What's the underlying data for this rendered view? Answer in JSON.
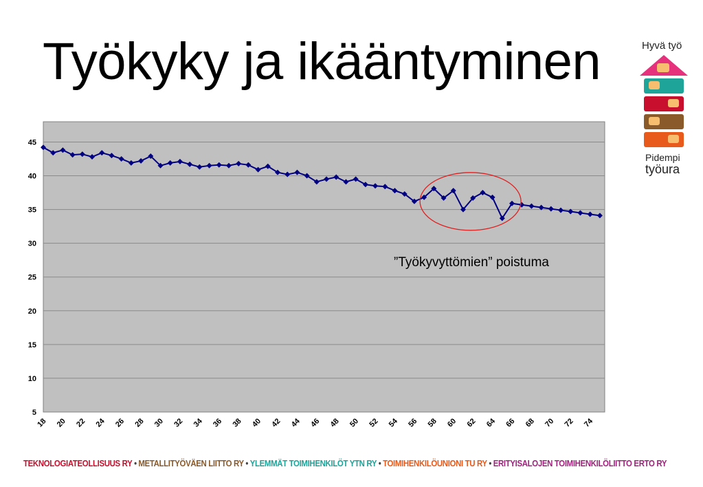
{
  "title": "Työkyky ja ikääntyminen",
  "logo": {
    "top_text": "Hyvä työ",
    "bottom_text_1": "Pidempi",
    "bottom_text_2": "työura",
    "colors": [
      "#e6317d",
      "#1fa49a",
      "#c8102e",
      "#8b5a2b",
      "#e85a1b",
      "#f6be6e"
    ]
  },
  "chart_data": {
    "type": "line",
    "x": [
      18,
      19,
      20,
      21,
      22,
      23,
      24,
      25,
      26,
      27,
      28,
      29,
      30,
      31,
      32,
      33,
      34,
      35,
      36,
      37,
      38,
      39,
      40,
      41,
      42,
      43,
      44,
      45,
      46,
      47,
      48,
      49,
      50,
      51,
      52,
      53,
      54,
      55,
      56,
      57,
      58,
      59,
      60,
      61,
      62,
      63,
      64,
      65,
      66,
      67,
      68,
      69,
      70,
      71,
      72,
      73,
      74,
      75
    ],
    "series": [
      {
        "values": [
          44.2,
          43.4,
          43.8,
          43.1,
          43.2,
          42.8,
          43.4,
          43.0,
          42.5,
          41.9,
          42.2,
          42.9,
          41.5,
          41.9,
          42.1,
          41.7,
          41.3,
          41.5,
          41.6,
          41.5,
          41.8,
          41.6,
          40.9,
          41.4,
          40.5,
          40.2,
          40.5,
          40.0,
          39.1,
          39.5,
          39.8,
          39.1,
          39.5,
          38.7,
          38.5,
          38.4,
          37.8,
          37.3,
          36.2,
          36.8,
          38.1,
          36.7,
          37.8,
          35.0,
          36.7,
          37.5,
          36.8,
          33.7,
          35.9,
          35.7,
          35.5,
          35.3,
          35.1,
          34.9,
          34.7,
          34.5,
          34.3,
          34.1
        ],
        "color": "#000080"
      }
    ],
    "yticks": [
      5,
      10,
      15,
      20,
      25,
      30,
      35,
      40,
      45
    ],
    "xticks": [
      18,
      20,
      22,
      24,
      26,
      28,
      30,
      32,
      34,
      36,
      38,
      40,
      42,
      44,
      46,
      48,
      50,
      52,
      54,
      56,
      58,
      60,
      62,
      64,
      66,
      68,
      70,
      72,
      74
    ],
    "ylim": [
      5,
      48
    ],
    "xlim": [
      18,
      75.5
    ],
    "grid": true,
    "plot_background": "#c0c0c0",
    "annotation": {
      "text": "”Työkyvyttömien” poistuma",
      "circle_color": "#e02020"
    }
  },
  "footer": [
    {
      "text": "TEKNOLOGIATEOLLISUUS RY",
      "color": "#c8102e"
    },
    {
      "text": "METALLITYÖVÄEN LIITTO RY",
      "color": "#8b5a2b"
    },
    {
      "text": "YLEMMÄT TOIMIHENKILÖT YTN RY",
      "color": "#1fa49a"
    },
    {
      "text": "TOIMIHENKILÖUNIONI TU RY",
      "color": "#e85a1b"
    },
    {
      "text": "ERITYISALOJEN TOIMIHENKILÖLIITTO ERTO RY",
      "color": "#a0237d"
    }
  ]
}
